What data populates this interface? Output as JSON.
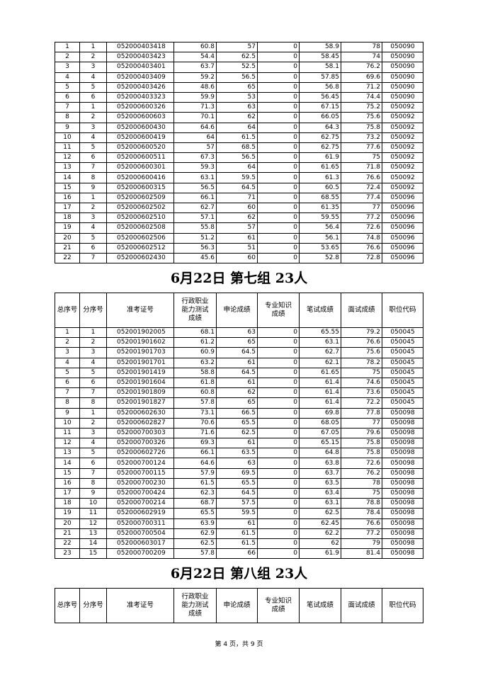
{
  "headers": [
    "总序号",
    "分序号",
    "准考证号",
    "行政职业能力测试成绩",
    "申论成绩",
    "专业知识成绩",
    "笔试成绩",
    "面试成绩",
    "职位代码"
  ],
  "group6_continued": {
    "rows": [
      [
        "1",
        "1",
        "052000403418",
        "60.8",
        "57",
        "0",
        "58.9",
        "78",
        "050090"
      ],
      [
        "2",
        "2",
        "052000403423",
        "54.4",
        "62.5",
        "0",
        "58.45",
        "74",
        "050090"
      ],
      [
        "3",
        "3",
        "052000403401",
        "63.7",
        "52.5",
        "0",
        "58.1",
        "76.2",
        "050090"
      ],
      [
        "4",
        "4",
        "052000403409",
        "59.2",
        "56.5",
        "0",
        "57.85",
        "69.6",
        "050090"
      ],
      [
        "5",
        "5",
        "052000403426",
        "48.6",
        "65",
        "0",
        "56.8",
        "71.2",
        "050090"
      ],
      [
        "6",
        "6",
        "052000403323",
        "59.9",
        "53",
        "0",
        "56.45",
        "74.4",
        "050090"
      ],
      [
        "7",
        "1",
        "052000600326",
        "71.3",
        "63",
        "0",
        "67.15",
        "75.2",
        "050092"
      ],
      [
        "8",
        "2",
        "052000600603",
        "70.1",
        "62",
        "0",
        "66.05",
        "75.6",
        "050092"
      ],
      [
        "9",
        "3",
        "052000600430",
        "64.6",
        "64",
        "0",
        "64.3",
        "75.8",
        "050092"
      ],
      [
        "10",
        "4",
        "052000600419",
        "64",
        "61.5",
        "0",
        "62.75",
        "73.2",
        "050092"
      ],
      [
        "11",
        "5",
        "052000600520",
        "57",
        "68.5",
        "0",
        "62.75",
        "77.6",
        "050092"
      ],
      [
        "12",
        "6",
        "052000600511",
        "67.3",
        "56.5",
        "0",
        "61.9",
        "75",
        "050092"
      ],
      [
        "13",
        "7",
        "052000600301",
        "59.3",
        "64",
        "0",
        "61.65",
        "71.8",
        "050092"
      ],
      [
        "14",
        "8",
        "052000600416",
        "63.1",
        "59.5",
        "0",
        "61.3",
        "76.6",
        "050092"
      ],
      [
        "15",
        "9",
        "052000600315",
        "56.5",
        "64.5",
        "0",
        "60.5",
        "72.4",
        "050092"
      ],
      [
        "16",
        "1",
        "052000602509",
        "66.1",
        "71",
        "0",
        "68.55",
        "77.4",
        "050096"
      ],
      [
        "17",
        "2",
        "052000602502",
        "62.7",
        "60",
        "0",
        "61.35",
        "77",
        "050096"
      ],
      [
        "18",
        "3",
        "052000602510",
        "57.1",
        "62",
        "0",
        "59.55",
        "77.2",
        "050096"
      ],
      [
        "19",
        "4",
        "052000602508",
        "55.8",
        "57",
        "0",
        "56.4",
        "72.6",
        "050096"
      ],
      [
        "20",
        "5",
        "052000602506",
        "51.2",
        "61",
        "0",
        "56.1",
        "74.8",
        "050096"
      ],
      [
        "21",
        "6",
        "052000602512",
        "56.3",
        "51",
        "0",
        "53.65",
        "76.6",
        "050096"
      ],
      [
        "22",
        "7",
        "052000602430",
        "45.6",
        "60",
        "0",
        "52.8",
        "72.8",
        "050096"
      ]
    ]
  },
  "group7": {
    "title": "6月22日  第七组  23人",
    "rows": [
      [
        "1",
        "1",
        "052001902005",
        "68.1",
        "63",
        "0",
        "65.55",
        "79.2",
        "050045"
      ],
      [
        "2",
        "2",
        "052001901602",
        "61.2",
        "65",
        "0",
        "63.1",
        "76.6",
        "050045"
      ],
      [
        "3",
        "3",
        "052001901703",
        "60.9",
        "64.5",
        "0",
        "62.7",
        "75.6",
        "050045"
      ],
      [
        "4",
        "4",
        "052001901701",
        "63.2",
        "61",
        "0",
        "62.1",
        "78.2",
        "050045"
      ],
      [
        "5",
        "5",
        "052001901419",
        "58.8",
        "64.5",
        "0",
        "61.65",
        "75",
        "050045"
      ],
      [
        "6",
        "6",
        "052001901604",
        "61.8",
        "61",
        "0",
        "61.4",
        "74.6",
        "050045"
      ],
      [
        "7",
        "7",
        "052001901809",
        "60.8",
        "62",
        "0",
        "61.4",
        "73.6",
        "050045"
      ],
      [
        "8",
        "8",
        "052001901827",
        "57.8",
        "65",
        "0",
        "61.4",
        "72.2",
        "050045"
      ],
      [
        "9",
        "1",
        "052000602630",
        "73.1",
        "66.5",
        "0",
        "69.8",
        "77.8",
        "050098"
      ],
      [
        "10",
        "2",
        "052000602827",
        "70.6",
        "65.5",
        "0",
        "68.05",
        "77",
        "050098"
      ],
      [
        "11",
        "3",
        "052000700303",
        "71.6",
        "62.5",
        "0",
        "67.05",
        "79.6",
        "050098"
      ],
      [
        "12",
        "4",
        "052000700326",
        "69.3",
        "61",
        "0",
        "65.15",
        "75.8",
        "050098"
      ],
      [
        "13",
        "5",
        "052000602726",
        "66.1",
        "63.5",
        "0",
        "64.8",
        "75.8",
        "050098"
      ],
      [
        "14",
        "6",
        "052000700124",
        "64.6",
        "63",
        "0",
        "63.8",
        "72.6",
        "050098"
      ],
      [
        "15",
        "7",
        "052000700115",
        "57.9",
        "69.5",
        "0",
        "63.7",
        "76.2",
        "050098"
      ],
      [
        "16",
        "8",
        "052000700230",
        "61.5",
        "65.5",
        "0",
        "63.5",
        "78",
        "050098"
      ],
      [
        "17",
        "9",
        "052000700424",
        "62.3",
        "64.5",
        "0",
        "63.4",
        "75",
        "050098"
      ],
      [
        "18",
        "10",
        "052000700214",
        "68.7",
        "57.5",
        "0",
        "63.1",
        "78.8",
        "050098"
      ],
      [
        "19",
        "11",
        "052000602919",
        "65.5",
        "59.5",
        "0",
        "62.5",
        "78.4",
        "050098"
      ],
      [
        "20",
        "12",
        "052000700311",
        "63.9",
        "61",
        "0",
        "62.45",
        "76.6",
        "050098"
      ],
      [
        "21",
        "13",
        "052000700504",
        "62.9",
        "61.5",
        "0",
        "62.2",
        "77.2",
        "050098"
      ],
      [
        "22",
        "14",
        "052000603017",
        "62.5",
        "61.5",
        "0",
        "62",
        "79",
        "050098"
      ],
      [
        "23",
        "15",
        "052000700209",
        "57.8",
        "66",
        "0",
        "61.9",
        "81.4",
        "050098"
      ]
    ]
  },
  "group8": {
    "title": "6月22日  第八组  23人",
    "rows": []
  },
  "footer": "第 4 页，共 9 页"
}
